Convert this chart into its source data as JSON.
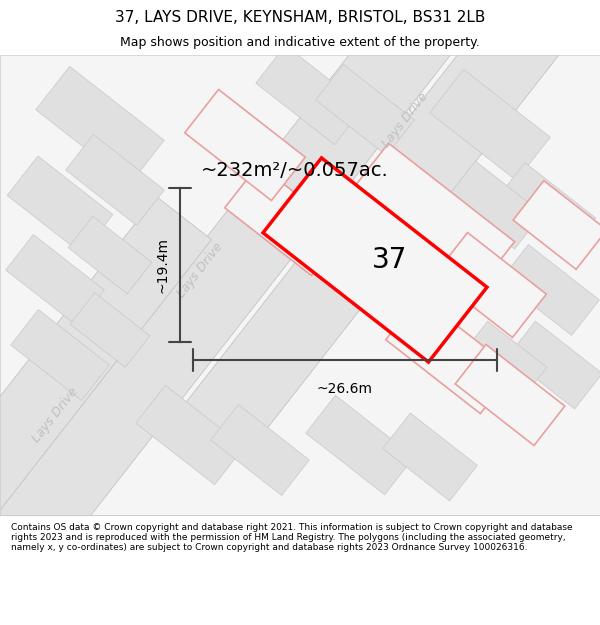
{
  "title": "37, LAYS DRIVE, KEYNSHAM, BRISTOL, BS31 2LB",
  "subtitle": "Map shows position and indicative extent of the property.",
  "footer": "Contains OS data © Crown copyright and database right 2021. This information is subject to Crown copyright and database rights 2023 and is reproduced with the permission of HM Land Registry. The polygons (including the associated geometry, namely x, y co-ordinates) are subject to Crown copyright and database rights 2023 Ordnance Survey 100026316.",
  "area_label": "~232m²/~0.057ac.",
  "width_label": "~26.6m",
  "height_label": "~19.4m",
  "property_number": "37",
  "map_bg": "#f5f5f5",
  "road_gray": "#e2e2e2",
  "block_gray": "#e0e0e0",
  "block_edge": "#c8c8c8",
  "pink_edge": "#e8a0a0",
  "red_outline": "#ff0000",
  "dim_color": "#444444",
  "road_text_color": "#c0c0c0",
  "ang": -38
}
